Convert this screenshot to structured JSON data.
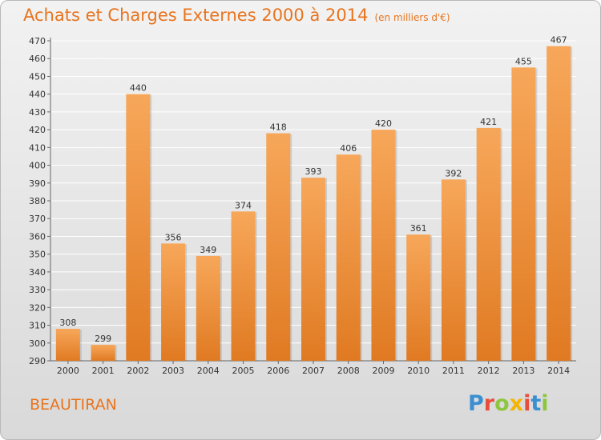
{
  "header": {
    "title": "Achats et Charges Externes 2000 à 2014",
    "subtitle": "(en milliers d'€)"
  },
  "footer": {
    "commune": "BEAUTIRAN",
    "logo": "Proxiti",
    "logo_colors": [
      "#3b8fd1",
      "#e74c3c",
      "#8dc63f",
      "#f4b400",
      "#e74c3c",
      "#3b8fd1",
      "#8dc63f"
    ]
  },
  "colors": {
    "bar_top": "#f7a75a",
    "bar_bottom": "#e07a22",
    "title": "#e8741e",
    "grid": "#ffffff"
  },
  "chart_data": {
    "type": "bar",
    "title": "Achats et Charges Externes 2000 à 2014",
    "subtitle": "(en milliers d'€)",
    "categories": [
      "2000",
      "2001",
      "2002",
      "2003",
      "2004",
      "2005",
      "2006",
      "2007",
      "2008",
      "2009",
      "2010",
      "2011",
      "2012",
      "2013",
      "2014"
    ],
    "values": [
      308,
      299,
      440,
      356,
      349,
      374,
      418,
      393,
      406,
      420,
      361,
      392,
      421,
      455,
      467
    ],
    "ylim": [
      290,
      470
    ],
    "yticks": [
      290,
      300,
      310,
      320,
      330,
      340,
      350,
      360,
      370,
      380,
      390,
      400,
      410,
      420,
      430,
      440,
      450,
      460,
      470
    ],
    "xlabel": "",
    "ylabel": "",
    "grid": true
  }
}
